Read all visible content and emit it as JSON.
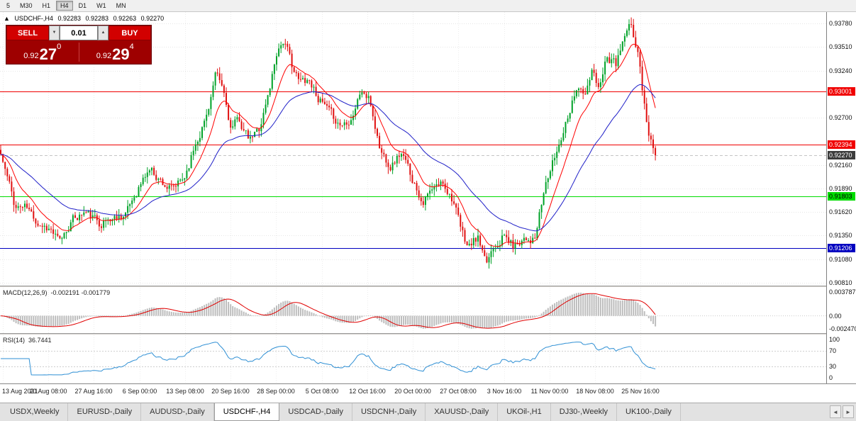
{
  "timeframe_toolbar": {
    "buttons": [
      {
        "label": "5",
        "active": false
      },
      {
        "label": "M30",
        "active": false
      },
      {
        "label": "H1",
        "active": false
      },
      {
        "label": "H4",
        "active": true
      },
      {
        "label": "D1",
        "active": false
      },
      {
        "label": "W1",
        "active": false
      },
      {
        "label": "MN",
        "active": false
      }
    ]
  },
  "chart_header": {
    "collapse_icon": "▲",
    "symbol": "USDCHF-,H4",
    "open": "0.92283",
    "high": "0.92283",
    "low": "0.92263",
    "close": "0.92270"
  },
  "trade_panel": {
    "sell_label": "SELL",
    "buy_label": "BUY",
    "lot_value": "0.01",
    "lot_down_icon": "▼",
    "lot_up_icon": "▲",
    "sell_price": {
      "prefix": "0.92",
      "big": "27",
      "sup": "0"
    },
    "buy_price": {
      "prefix": "0.92",
      "big": "29",
      "sup": "4"
    }
  },
  "price_axis": {
    "ticks": [
      "0.93780",
      "0.93510",
      "0.93240",
      "0.92700",
      "0.92160",
      "0.91890",
      "0.91620",
      "0.91350",
      "0.91080",
      "0.90810"
    ]
  },
  "macd_panel": {
    "title": "MACD(12,26,9)",
    "values": "-0.002191 -0.001779",
    "axis_ticks": [
      "0.003787",
      "0.00",
      "-0.002470"
    ]
  },
  "rsi_panel": {
    "title": "RSI(14)",
    "value": "36.7441",
    "axis_ticks": [
      "100",
      "70",
      "30",
      "0"
    ]
  },
  "time_axis": [
    "13 Aug 2021",
    "20 Aug 08:00",
    "27 Aug 16:00",
    "6 Sep 00:00",
    "13 Sep 08:00",
    "20 Sep 16:00",
    "28 Sep 00:00",
    "5 Oct 08:00",
    "12 Oct 16:00",
    "20 Oct 00:00",
    "27 Oct 08:00",
    "3 Nov 16:00",
    "11 Nov 00:00",
    "18 Nov 08:00",
    "25 Nov 16:00"
  ],
  "tab_bar": {
    "scroll_left_icon": "◄",
    "scroll_right_icon": "►",
    "tabs": [
      {
        "label": "USDX,Weekly",
        "active": false
      },
      {
        "label": "EURUSD-,Daily",
        "active": false
      },
      {
        "label": "AUDUSD-,Daily",
        "active": false
      },
      {
        "label": "USDCHF-,H4",
        "active": true
      },
      {
        "label": "USDCAD-,Daily",
        "active": false
      },
      {
        "label": "USDCNH-,Daily",
        "active": false
      },
      {
        "label": "XAUUSD-,Daily",
        "active": false
      },
      {
        "label": "UKOil-,H1",
        "active": false
      },
      {
        "label": "DJ30-,Weekly",
        "active": false
      },
      {
        "label": "UK100-,Daily",
        "active": false
      }
    ]
  },
  "chart_data": {
    "type": "candlestick",
    "title": "USDCHF-,H4",
    "timeframe": "H4",
    "ohlc_current": {
      "open": 0.92283,
      "high": 0.92283,
      "low": 0.92263,
      "close": 0.9227
    },
    "ylim": [
      0.9081,
      0.9378
    ],
    "x_range": [
      "13 Aug 2021",
      "25 Nov 16:00"
    ],
    "current_price": 0.9227,
    "current_price_label": {
      "label": "0.92270",
      "bg": "#3C3C3C",
      "text_color": "#FFFFFF"
    },
    "levels": [
      {
        "value": 0.93001,
        "label": "0.93001",
        "color": "#F00000",
        "text_color": "#FFFFFF"
      },
      {
        "value": 0.92394,
        "label": "0.92394",
        "color": "#F00000",
        "text_color": "#FFFFFF"
      },
      {
        "value": 0.91803,
        "label": "0.91803",
        "color": "#00DC00",
        "text_color": "#000000"
      },
      {
        "value": 0.91206,
        "label": "0.91206",
        "color": "#0000C0",
        "text_color": "#FFFFFF"
      }
    ],
    "colors": {
      "up": "#00A228",
      "down": "#E01010",
      "ma_fast": "#FF0000",
      "ma_slow": "#2020C8",
      "macd_hist": "#BDBDBD",
      "macd_signal": "#E00000",
      "rsi": "#2E8FD4"
    },
    "bars": 300,
    "noise_amp": 0.0011,
    "wick_amp": 0.0008,
    "seed": 11,
    "price_close_anchors": [
      [
        0.0,
        0.9228
      ],
      [
        0.012,
        0.9196
      ],
      [
        0.022,
        0.9168
      ],
      [
        0.038,
        0.9168
      ],
      [
        0.055,
        0.9152
      ],
      [
        0.076,
        0.9143
      ],
      [
        0.09,
        0.9126
      ],
      [
        0.108,
        0.9152
      ],
      [
        0.128,
        0.9162
      ],
      [
        0.15,
        0.915
      ],
      [
        0.172,
        0.9155
      ],
      [
        0.193,
        0.9162
      ],
      [
        0.21,
        0.919
      ],
      [
        0.228,
        0.9212
      ],
      [
        0.24,
        0.9202
      ],
      [
        0.262,
        0.9186
      ],
      [
        0.28,
        0.92
      ],
      [
        0.297,
        0.924
      ],
      [
        0.314,
        0.9272
      ],
      [
        0.328,
        0.9318
      ],
      [
        0.34,
        0.93
      ],
      [
        0.352,
        0.9256
      ],
      [
        0.364,
        0.9268
      ],
      [
        0.38,
        0.9242
      ],
      [
        0.395,
        0.9258
      ],
      [
        0.41,
        0.93
      ],
      [
        0.422,
        0.9348
      ],
      [
        0.432,
        0.936
      ],
      [
        0.444,
        0.9332
      ],
      [
        0.456,
        0.931
      ],
      [
        0.47,
        0.9316
      ],
      [
        0.488,
        0.929
      ],
      [
        0.504,
        0.9272
      ],
      [
        0.52,
        0.9262
      ],
      [
        0.536,
        0.9272
      ],
      [
        0.551,
        0.9302
      ],
      [
        0.564,
        0.9288
      ],
      [
        0.58,
        0.9232
      ],
      [
        0.596,
        0.9216
      ],
      [
        0.611,
        0.923
      ],
      [
        0.628,
        0.9202
      ],
      [
        0.644,
        0.9176
      ],
      [
        0.66,
        0.9186
      ],
      [
        0.676,
        0.9196
      ],
      [
        0.691,
        0.9178
      ],
      [
        0.703,
        0.914
      ],
      [
        0.714,
        0.9122
      ],
      [
        0.729,
        0.9132
      ],
      [
        0.741,
        0.9098
      ],
      [
        0.752,
        0.9124
      ],
      [
        0.768,
        0.9136
      ],
      [
        0.784,
        0.9122
      ],
      [
        0.8,
        0.9136
      ],
      [
        0.816,
        0.913
      ],
      [
        0.833,
        0.9196
      ],
      [
        0.849,
        0.923
      ],
      [
        0.865,
        0.9272
      ],
      [
        0.881,
        0.931
      ],
      [
        0.892,
        0.9292
      ],
      [
        0.903,
        0.9322
      ],
      [
        0.913,
        0.9302
      ],
      [
        0.924,
        0.934
      ],
      [
        0.94,
        0.933
      ],
      [
        0.952,
        0.936
      ],
      [
        0.963,
        0.9374
      ],
      [
        0.974,
        0.9342
      ],
      [
        0.982,
        0.9292
      ],
      [
        0.99,
        0.9252
      ],
      [
        1.0,
        0.9227
      ]
    ],
    "indicators": [
      {
        "name": "MACD",
        "params": [
          12,
          26,
          9
        ],
        "last_values": [
          -0.002191,
          -0.001779
        ]
      },
      {
        "name": "RSI",
        "params": [
          14
        ],
        "last_value": 36.7441
      }
    ]
  }
}
